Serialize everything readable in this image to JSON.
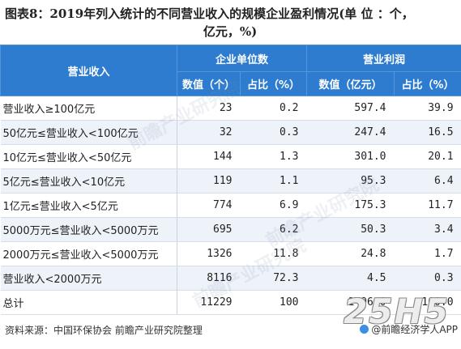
{
  "title": {
    "line1": "图表8：2019年列入统计的不同营业收入的规模企业盈利情况(单 位 ：个，",
    "line2": "亿元，%)"
  },
  "table": {
    "row_header": "营业收入",
    "group1": "企业单位数",
    "group2": "营业利润",
    "sub": [
      "数值（个）",
      "占比（%）",
      "数值（亿元）",
      "占比（%）"
    ],
    "rows": [
      {
        "label": "营业收入≥100亿元",
        "c1": "23",
        "c2": "0.2",
        "c3": "597.4",
        "c4": "39.9"
      },
      {
        "label": "50亿元≤营业收入<100亿元",
        "c1": "32",
        "c2": "0.3",
        "c3": "247.4",
        "c4": "16.5"
      },
      {
        "label": "10亿元≤营业收入<50亿元",
        "c1": "144",
        "c2": "1.3",
        "c3": "301.0",
        "c4": "20.1"
      },
      {
        "label": "5亿元≤营业收入<10亿元",
        "c1": "119",
        "c2": "1.1",
        "c3": "95.3",
        "c4": "6.4"
      },
      {
        "label": "1亿元≤营业收入<5亿元",
        "c1": "774",
        "c2": "6.9",
        "c3": "175.3",
        "c4": "11.7"
      },
      {
        "label": "5000万元≤营业收入<5000万元",
        "c1": "695",
        "c2": "6.2",
        "c3": "50.3",
        "c4": "3.4"
      },
      {
        "label": "2000万元≤营业收入<5000万元",
        "c1": "1326",
        "c2": "11.8",
        "c3": "24.8",
        "c4": "1.7"
      },
      {
        "label": "营业收入<2000万元",
        "c1": "8116",
        "c2": "72.3",
        "c3": "4.5",
        "c4": "0.3"
      },
      {
        "label": "总计",
        "c1": "11229",
        "c2": "100",
        "c3": "1496.0",
        "c4": "100.0"
      }
    ]
  },
  "footer": {
    "source": "资料来源：中国环保协会 前瞻产业研究院整理",
    "brand": "@前瞻经济学人APP"
  },
  "watermark": {
    "text": "前瞻产业研究院",
    "logo": "25H5"
  },
  "colors": {
    "header_bg": "#2e7ccf",
    "stripe": "#eef3fa"
  }
}
